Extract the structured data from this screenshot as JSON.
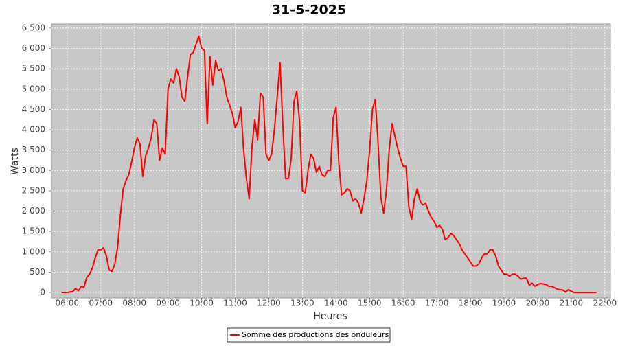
{
  "chart_data": {
    "type": "line",
    "title": "31-5-2025",
    "x_label": "Heures",
    "y_label": "Watts",
    "x": [
      "05:50",
      "05:55",
      "06:00",
      "06:05",
      "06:10",
      "06:15",
      "06:20",
      "06:25",
      "06:30",
      "06:35",
      "06:40",
      "06:45",
      "06:50",
      "06:55",
      "07:00",
      "07:05",
      "07:10",
      "07:15",
      "07:20",
      "07:25",
      "07:30",
      "07:35",
      "07:40",
      "07:45",
      "07:50",
      "07:55",
      "08:00",
      "08:05",
      "08:10",
      "08:15",
      "08:20",
      "08:25",
      "08:30",
      "08:35",
      "08:40",
      "08:45",
      "08:50",
      "08:55",
      "09:00",
      "09:05",
      "09:10",
      "09:15",
      "09:20",
      "09:25",
      "09:30",
      "09:35",
      "09:40",
      "09:45",
      "09:50",
      "09:55",
      "10:00",
      "10:05",
      "10:10",
      "10:15",
      "10:20",
      "10:25",
      "10:30",
      "10:35",
      "10:40",
      "10:45",
      "10:50",
      "10:55",
      "11:00",
      "11:05",
      "11:10",
      "11:15",
      "11:20",
      "11:25",
      "11:30",
      "11:35",
      "11:40",
      "11:45",
      "11:50",
      "11:55",
      "12:00",
      "12:05",
      "12:10",
      "12:15",
      "12:20",
      "12:25",
      "12:30",
      "12:35",
      "12:40",
      "12:45",
      "12:50",
      "12:55",
      "13:00",
      "13:05",
      "13:10",
      "13:15",
      "13:20",
      "13:25",
      "13:30",
      "13:35",
      "13:40",
      "13:45",
      "13:50",
      "13:55",
      "14:00",
      "14:05",
      "14:10",
      "14:15",
      "14:20",
      "14:25",
      "14:30",
      "14:35",
      "14:40",
      "14:45",
      "14:50",
      "14:55",
      "15:00",
      "15:05",
      "15:10",
      "15:15",
      "15:20",
      "15:25",
      "15:30",
      "15:35",
      "15:40",
      "15:45",
      "15:50",
      "15:55",
      "16:00",
      "16:05",
      "16:10",
      "16:15",
      "16:20",
      "16:25",
      "16:30",
      "16:35",
      "16:40",
      "16:45",
      "16:50",
      "16:55",
      "17:00",
      "17:05",
      "17:10",
      "17:15",
      "17:20",
      "17:25",
      "17:30",
      "17:35",
      "17:40",
      "17:45",
      "17:50",
      "17:55",
      "18:00",
      "18:05",
      "18:10",
      "18:15",
      "18:20",
      "18:25",
      "18:30",
      "18:35",
      "18:40",
      "18:45",
      "18:50",
      "18:55",
      "19:00",
      "19:05",
      "19:10",
      "19:15",
      "19:20",
      "19:25",
      "19:30",
      "19:35",
      "19:40",
      "19:45",
      "19:50",
      "19:55",
      "20:00",
      "20:05",
      "20:10",
      "20:15",
      "20:20",
      "20:25",
      "20:30",
      "20:35",
      "20:40",
      "20:45",
      "20:50",
      "20:55",
      "21:00",
      "21:05",
      "21:10",
      "21:15",
      "21:20",
      "21:25",
      "21:30",
      "21:35",
      "21:40",
      "21:45"
    ],
    "series": [
      {
        "name": "Somme des productions des onduleurs",
        "color": "#ff0000",
        "values": [
          0,
          0,
          0,
          10,
          20,
          100,
          40,
          150,
          130,
          370,
          450,
          600,
          850,
          1050,
          1050,
          1100,
          900,
          550,
          520,
          700,
          1100,
          1900,
          2550,
          2750,
          2900,
          3200,
          3550,
          3800,
          3650,
          2850,
          3350,
          3550,
          3800,
          4250,
          4150,
          3250,
          3550,
          3400,
          5000,
          5250,
          5150,
          5500,
          5300,
          4800,
          4700,
          5300,
          5850,
          5900,
          6100,
          6300,
          6000,
          5950,
          4150,
          5800,
          5100,
          5700,
          5450,
          5500,
          5200,
          4800,
          4600,
          4400,
          4050,
          4200,
          4550,
          3500,
          2800,
          2300,
          3600,
          4250,
          3750,
          4900,
          4800,
          3400,
          3250,
          3400,
          4000,
          4800,
          5650,
          4100,
          2800,
          2800,
          3300,
          4700,
          4950,
          4200,
          2500,
          2450,
          3000,
          3400,
          3300,
          2950,
          3100,
          2900,
          2850,
          3000,
          3000,
          4300,
          4550,
          3200,
          2400,
          2450,
          2550,
          2500,
          2250,
          2300,
          2200,
          1950,
          2300,
          2750,
          3500,
          4500,
          4750,
          3700,
          2350,
          1950,
          2500,
          3500,
          4150,
          3850,
          3550,
          3300,
          3100,
          3100,
          2100,
          1800,
          2300,
          2550,
          2250,
          2150,
          2200,
          2000,
          1850,
          1750,
          1600,
          1650,
          1550,
          1300,
          1350,
          1450,
          1400,
          1300,
          1200,
          1050,
          950,
          850,
          750,
          650,
          650,
          700,
          850,
          950,
          950,
          1050,
          1050,
          900,
          650,
          550,
          450,
          450,
          400,
          450,
          450,
          400,
          330,
          350,
          350,
          180,
          230,
          150,
          200,
          220,
          210,
          200,
          150,
          150,
          120,
          80,
          70,
          60,
          10,
          70,
          30,
          0,
          0,
          0,
          0,
          0,
          0,
          0,
          0,
          0
        ]
      }
    ],
    "xlim": [
      "05:32",
      "22:10"
    ],
    "xticks": [
      "06:00",
      "07:00",
      "08:00",
      "09:00",
      "10:00",
      "11:00",
      "12:00",
      "13:00",
      "14:00",
      "15:00",
      "16:00",
      "17:00",
      "18:00",
      "19:00",
      "20:00",
      "21:00",
      "22:00"
    ],
    "ylim": [
      -135,
      6600
    ],
    "yticks": [
      0,
      500,
      {
        "value": 1000,
        "label": "1 000"
      },
      {
        "value": 1500,
        "label": "1 500"
      },
      {
        "value": 2000,
        "label": "2 000"
      },
      {
        "value": 2500,
        "label": "2 500"
      },
      {
        "value": 3000,
        "label": "3 000"
      },
      {
        "value": 3500,
        "label": "3 500"
      },
      {
        "value": 4000,
        "label": "4 000"
      },
      {
        "value": 4500,
        "label": "4 500"
      },
      {
        "value": 5000,
        "label": "5 000"
      },
      {
        "value": 5500,
        "label": "5 500"
      },
      {
        "value": 6000,
        "label": "6 000"
      },
      {
        "value": 6500,
        "label": "6 500"
      }
    ],
    "grid": true,
    "legend": "bottom"
  }
}
